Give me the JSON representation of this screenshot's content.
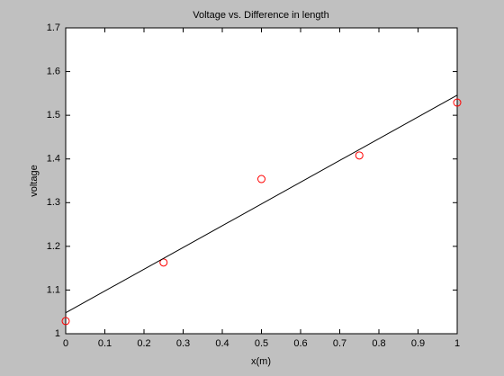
{
  "chart_data": {
    "type": "scatter",
    "title": "Voltage vs. Difference in length",
    "xlabel": "x(m)",
    "ylabel": "voltage",
    "xlim": [
      0,
      1
    ],
    "ylim": [
      1,
      1.7
    ],
    "xticks": [
      0,
      0.1,
      0.2,
      0.3,
      0.4,
      0.5,
      0.6,
      0.7,
      0.8,
      0.9,
      1
    ],
    "yticks": [
      1,
      1.1,
      1.2,
      1.3,
      1.4,
      1.5,
      1.6,
      1.7
    ],
    "series": [
      {
        "type": "scatter",
        "marker": "circle",
        "color": "#ff0000",
        "x": [
          0,
          0.25,
          0.5,
          0.75,
          1
        ],
        "values": [
          1.029,
          1.163,
          1.354,
          1.408,
          1.529
        ]
      },
      {
        "type": "line",
        "color": "#000000",
        "x": [
          0,
          1
        ],
        "values": [
          1.048,
          1.546
        ]
      }
    ]
  }
}
